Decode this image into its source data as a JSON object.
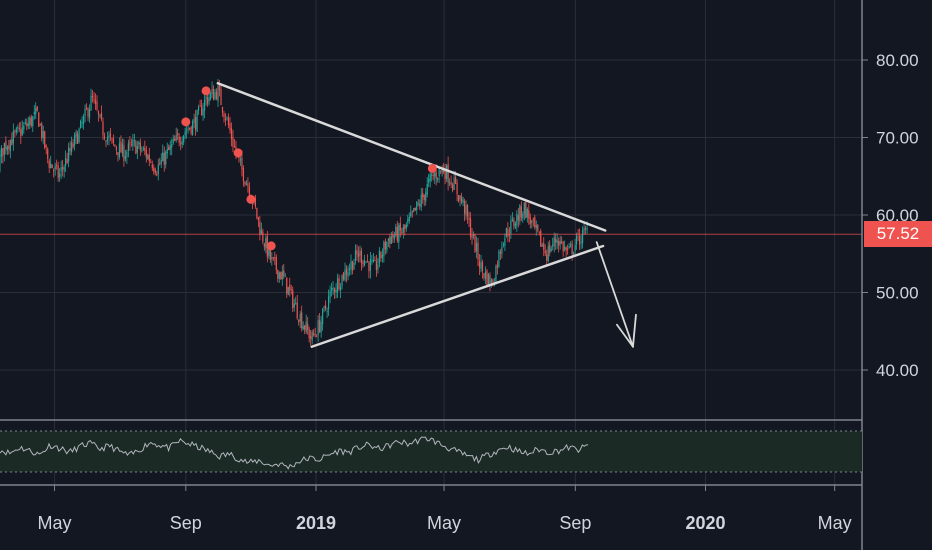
{
  "chart_data": {
    "type": "candlestick",
    "x_ticks": [
      "May",
      "Sep",
      "2019",
      "May",
      "Sep",
      "2020",
      "May"
    ],
    "y_ticks": [
      "80.00",
      "70.00",
      "60.00",
      "50.00",
      "40.00"
    ],
    "ylim": [
      34,
      86
    ],
    "last_price": "57.52",
    "grid": true,
    "colors": {
      "background": "#131722",
      "up": "#26a69a",
      "down": "#ef5350",
      "grid": "#2a2e39",
      "axis_text": "#d1d4dc",
      "trendline": "#d9d9d9",
      "price_line": "#ef5350",
      "oscillator_line": "#b2b5be",
      "oscillator_band": "#1b2a24"
    },
    "price_path": [
      [
        "2018-02-01",
        64
      ],
      [
        "2018-02-10",
        61
      ],
      [
        "2018-02-20",
        66
      ],
      [
        "2018-03-01",
        63
      ],
      [
        "2018-03-15",
        69
      ],
      [
        "2018-04-01",
        71
      ],
      [
        "2018-04-15",
        73
      ],
      [
        "2018-04-25",
        67
      ],
      [
        "2018-05-05",
        65
      ],
      [
        "2018-05-15",
        68
      ],
      [
        "2018-05-25",
        71
      ],
      [
        "2018-06-05",
        75
      ],
      [
        "2018-06-15",
        71
      ],
      [
        "2018-06-25",
        69
      ],
      [
        "2018-07-05",
        68
      ],
      [
        "2018-07-15",
        69
      ],
      [
        "2018-07-25",
        68
      ],
      [
        "2018-08-05",
        66
      ],
      [
        "2018-08-20",
        69
      ],
      [
        "2018-09-01",
        71
      ],
      [
        "2018-09-10",
        72
      ],
      [
        "2018-09-20",
        75
      ],
      [
        "2018-10-01",
        76
      ],
      [
        "2018-10-10",
        72
      ],
      [
        "2018-10-20",
        67
      ],
      [
        "2018-11-01",
        63
      ],
      [
        "2018-11-10",
        58
      ],
      [
        "2018-11-20",
        54
      ],
      [
        "2018-12-01",
        52
      ],
      [
        "2018-12-10",
        49
      ],
      [
        "2018-12-20",
        46
      ],
      [
        "2018-12-28",
        44
      ],
      [
        "2019-01-05",
        46
      ],
      [
        "2019-01-15",
        50
      ],
      [
        "2019-01-25",
        52
      ],
      [
        "2019-02-10",
        55
      ],
      [
        "2019-02-25",
        53
      ],
      [
        "2019-03-10",
        57
      ],
      [
        "2019-03-25",
        58
      ],
      [
        "2019-04-10",
        62
      ],
      [
        "2019-04-20",
        65
      ],
      [
        "2019-05-01",
        66
      ],
      [
        "2019-05-10",
        64
      ],
      [
        "2019-05-20",
        61
      ],
      [
        "2019-05-28",
        57
      ],
      [
        "2019-06-05",
        53
      ],
      [
        "2019-06-15",
        51
      ],
      [
        "2019-06-25",
        57
      ],
      [
        "2019-07-05",
        59
      ],
      [
        "2019-07-15",
        61
      ],
      [
        "2019-07-25",
        58
      ],
      [
        "2019-08-05",
        55
      ],
      [
        "2019-08-15",
        57
      ],
      [
        "2019-08-25",
        55
      ],
      [
        "2019-09-05",
        57
      ],
      [
        "2019-09-13",
        58
      ]
    ],
    "sell_markers": [
      [
        "2018-09-01",
        71.5
      ],
      [
        "2018-09-20",
        75.5
      ],
      [
        "2018-10-20",
        67.5
      ],
      [
        "2018-11-01",
        61.5
      ],
      [
        "2018-11-20",
        55.5
      ],
      [
        "2019-04-20",
        65.5
      ]
    ],
    "trendlines": [
      {
        "from": [
          "2018-10-01",
          77
        ],
        "to": [
          "2019-09-29",
          58
        ]
      },
      {
        "from": [
          "2018-12-28",
          43
        ],
        "to": [
          "2019-09-27",
          56
        ]
      }
    ],
    "arrow": {
      "from": [
        "2019-09-21",
        56.5
      ],
      "to": [
        "2019-10-25",
        43
      ]
    },
    "oscillator": [
      52,
      48,
      55,
      51,
      46,
      58,
      54,
      49,
      56,
      60,
      53,
      57,
      50,
      45,
      52,
      61,
      58,
      54,
      63,
      59,
      55,
      50,
      44,
      47,
      41,
      36,
      39,
      33,
      35,
      31,
      38,
      42,
      40,
      46,
      51,
      49,
      55,
      58,
      53,
      57,
      62,
      59,
      64,
      66,
      60,
      54,
      49,
      44,
      40,
      46,
      52,
      56,
      50,
      47,
      53,
      49,
      51,
      55,
      52,
      57
    ]
  }
}
